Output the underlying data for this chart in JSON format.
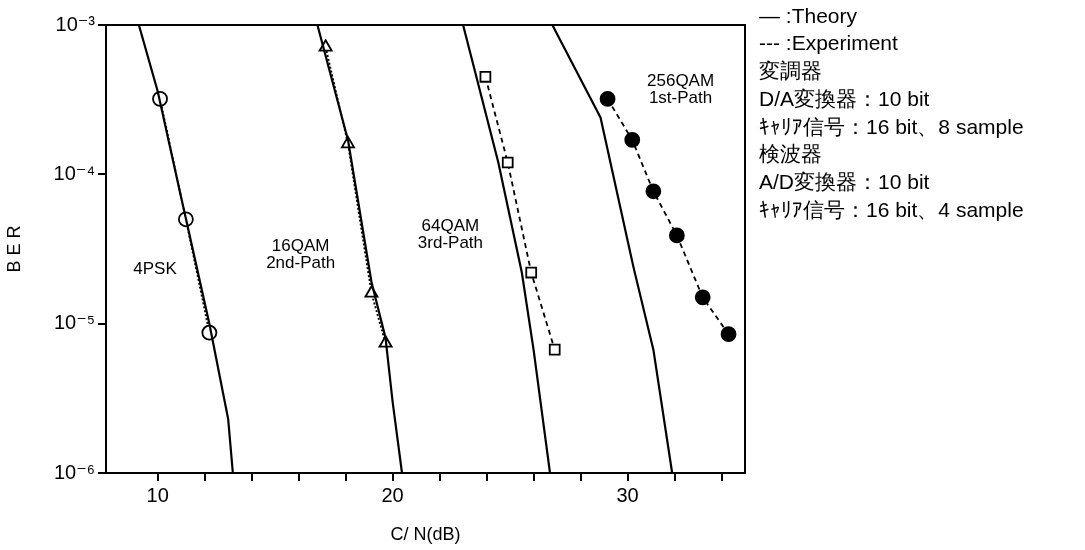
{
  "chart_data": {
    "type": "line",
    "xlabel": "C/ N(dB)",
    "ylabel": "B E R",
    "log": "y",
    "grid": false,
    "xlim": [
      7.8,
      35
    ],
    "xticks": [
      10,
      {
        "value": 12,
        "label": null
      },
      {
        "value": 14,
        "label": null
      },
      {
        "value": 16,
        "label": null
      },
      {
        "value": 18,
        "label": null
      },
      20,
      {
        "value": 22,
        "label": null
      },
      {
        "value": 24,
        "label": null
      },
      {
        "value": 26,
        "label": null
      },
      {
        "value": 28,
        "label": null
      },
      30,
      {
        "value": 32,
        "label": null
      },
      {
        "value": 34,
        "label": null
      }
    ],
    "ylim": [
      1e-06,
      0.001
    ],
    "yticks": [
      {
        "value": 0.001,
        "label": "10⁻³"
      },
      {
        "value": 0.0001,
        "label": "10⁻⁴"
      },
      {
        "value": 1e-05,
        "label": "10⁻⁵"
      },
      {
        "value": 1e-06,
        "label": "10⁻⁶"
      }
    ],
    "series": [
      {
        "color": "#000000",
        "line_style": "solid",
        "marker": "none",
        "x": [
          9.2,
          10.0,
          11.0,
          12.2,
          13.0,
          13.2
        ],
        "values": [
          0.001,
          0.00036,
          7e-05,
          1e-05,
          2.3e-06,
          1e-06
        ]
      },
      {
        "name": "4PSK",
        "color": "#000000",
        "line_style": "dotted",
        "marker": "circle",
        "x": [
          10.1,
          11.2,
          12.2
        ],
        "values": [
          0.00032,
          5e-05,
          8.7e-06
        ]
      },
      {
        "color": "#000000",
        "line_style": "solid",
        "marker": "none",
        "x": [
          16.8,
          18.1,
          19.1,
          19.7,
          20.0,
          20.4
        ],
        "values": [
          0.001,
          0.00017,
          1.9e-05,
          8e-06,
          3e-06,
          1e-06
        ]
      },
      {
        "name": "16QAM\n2nd-Path",
        "color": "#000000",
        "line_style": "dotted",
        "marker": "triangle",
        "x": [
          17.15,
          18.1,
          19.1,
          19.7
        ],
        "values": [
          0.00071,
          0.00016,
          1.6e-05,
          7.4e-06
        ]
      },
      {
        "color": "#000000",
        "line_style": "solid",
        "marker": "none",
        "x": [
          23.0,
          24.5,
          25.5,
          26.0,
          26.7
        ],
        "values": [
          0.001,
          0.00012,
          2.2e-05,
          6.7e-06,
          1e-06
        ]
      },
      {
        "name": "64QAM\n3rd-Path",
        "color": "#000000",
        "line_style": "dashed",
        "marker": "square",
        "x": [
          23.95,
          24.9,
          25.9,
          26.9
        ],
        "values": [
          0.00045,
          0.00012,
          2.2e-05,
          6.7e-06
        ]
      },
      {
        "color": "#000000",
        "line_style": "solid",
        "marker": "none",
        "x": [
          26.8,
          28.85,
          30.25,
          31.1,
          31.9
        ],
        "values": [
          0.001,
          0.00024,
          2.4e-05,
          6.7e-06,
          1e-06
        ]
      },
      {
        "name": "256QAM\n1st-Path",
        "color": "#000000",
        "line_style": "dashed",
        "marker": "filled-circle",
        "x": [
          29.15,
          30.2,
          31.1,
          32.1,
          33.2,
          34.3
        ],
        "values": [
          0.00032,
          0.00017,
          7.7e-05,
          3.9e-05,
          1.5e-05,
          8.5e-06
        ]
      }
    ],
    "annotations": [
      "— :Theory",
      "--- :Experiment",
      "変調器",
      "D/A変換器：10 bit",
      "ｷｬﾘｱ信号：16 bit、8 sample",
      "検波器",
      "A/D変換器：10 bit",
      "ｷｬﾘｱ信号：16 bit、4 sample"
    ]
  }
}
